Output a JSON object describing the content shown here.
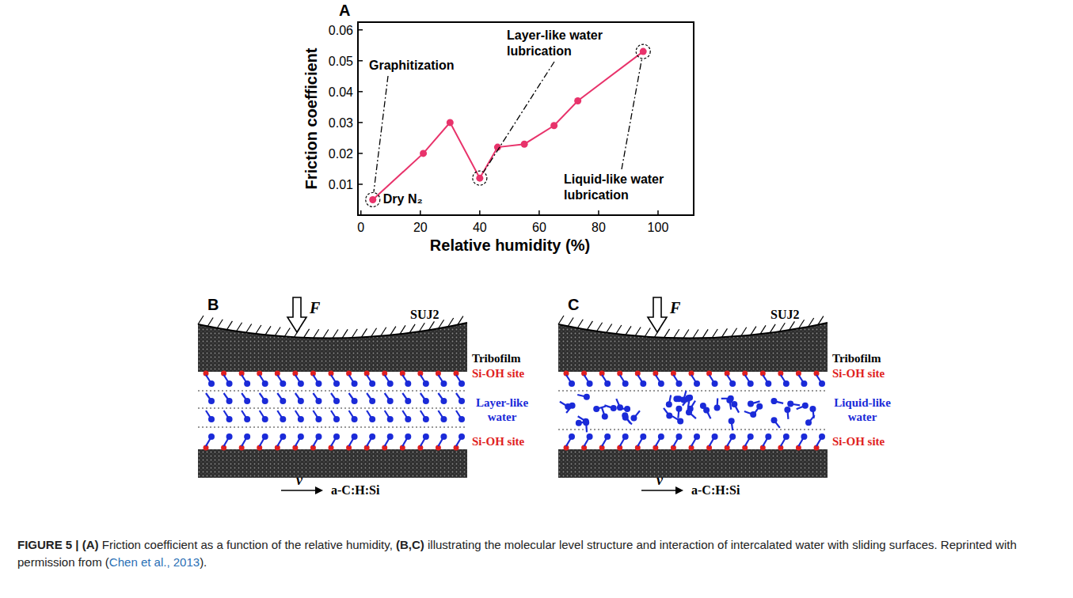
{
  "chart_data": {
    "type": "line",
    "panel_label": "A",
    "x_label": "Relative humidity (%)",
    "y_label": "Friction coefficient",
    "x": [
      4,
      21,
      30,
      40,
      46,
      55,
      65,
      73,
      95
    ],
    "values": [
      0.005,
      0.02,
      0.03,
      0.012,
      0.022,
      0.023,
      0.029,
      0.037,
      0.053
    ],
    "xlim": [
      -1,
      112
    ],
    "xticks": [
      0,
      20,
      40,
      60,
      80,
      100
    ],
    "ylim": [
      0,
      0.0625
    ],
    "yticks": [
      0.01,
      0.02,
      0.03,
      0.04,
      0.05,
      0.06
    ],
    "color": "#e8336b",
    "marker": "circle",
    "line_style": "solid",
    "annotations": [
      {
        "text": "Graphitization",
        "x": 4,
        "y": 0.005
      },
      {
        "text": "Layer-like water lubrication",
        "x": 40,
        "y": 0.012
      },
      {
        "text": "Liquid-like water lubrication",
        "x": 95,
        "y": 0.053
      }
    ],
    "point_labels": [
      {
        "text": "Dry N₂",
        "x": 4,
        "y": 0.005
      }
    ]
  },
  "diagrams": [
    {
      "panel_label": "B",
      "force": "F",
      "counterface": "SUJ2",
      "film": "Tribofilm",
      "site_top": "Si-OH site",
      "water": "Layer-like water",
      "water_state": "layer",
      "site_bottom": "Si-OH site",
      "velocity": "v",
      "substrate": "a-C:H:Si"
    },
    {
      "panel_label": "C",
      "force": "F",
      "counterface": "SUJ2",
      "film": "Tribofilm",
      "site_top": "Si-OH site",
      "water": "Liquid-like water",
      "water_state": "liquid",
      "site_bottom": "Si-OH site",
      "velocity": "v",
      "substrate": "a-C:H:Si"
    }
  ],
  "caption": [
    {
      "text": "FIGURE 5 | (A)",
      "style": "bold"
    },
    {
      "text": "Friction coefficient as a function of the relative humidity,",
      "style": "plain"
    },
    {
      "text": "(B,C)",
      "style": "bold"
    },
    {
      "text": "illustrating the molecular level structure and interaction of intercalated water with sliding surfaces. Reprinted with permission from (",
      "style": "plain"
    },
    {
      "text": "Chen et al., 2013",
      "style": "link"
    },
    {
      "text": ").",
      "style": "plain"
    }
  ]
}
